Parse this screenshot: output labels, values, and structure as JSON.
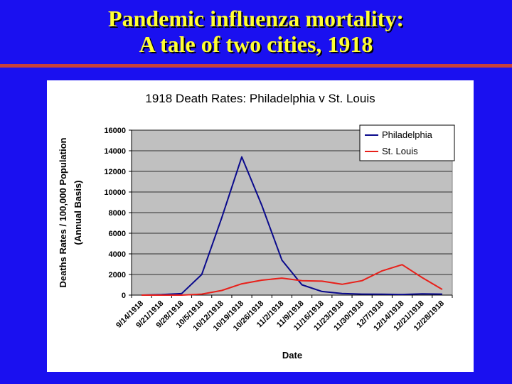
{
  "slide": {
    "title_line1": "Pandemic influenza mortality:",
    "title_line2": "A tale of two cities, 1918"
  },
  "colors": {
    "background": "#1a10f0",
    "title": "#ffff33",
    "rule": "#c8413a",
    "plot_area": "#c0c0c0",
    "philadelphia": "#0a0a8c",
    "st_louis": "#e8201a"
  },
  "chart_data": {
    "type": "line",
    "title": "1918 Death Rates: Philadelphia v St. Louis",
    "xlabel": "Date",
    "ylabel_line1": "Deaths Rates / 100,000 Population",
    "ylabel_line2": "(Annual Basis)",
    "ylim": [
      0,
      16000
    ],
    "yticks": [
      0,
      2000,
      4000,
      6000,
      8000,
      10000,
      12000,
      14000,
      16000
    ],
    "ytick_labels": [
      "0",
      "2000",
      "4000",
      "6000",
      "8000",
      "10000",
      "12000",
      "14000",
      "16000"
    ],
    "grid": true,
    "legend_position": "top-right",
    "categories": [
      "9/14/1918",
      "9/21/1918",
      "9/28/1918",
      "10/5/1918",
      "10/12/1918",
      "10/19/1918",
      "10/26/1918",
      "11/2/1918",
      "11/9/1918",
      "11/16/1918",
      "11/23/1918",
      "11/30/1918",
      "12/7/1918",
      "12/14/1918",
      "12/21/1918",
      "12/28/1918"
    ],
    "series": [
      {
        "name": "Philadelphia",
        "color": "#0a0a8c",
        "values": [
          0,
          50,
          150,
          2000,
          7500,
          13400,
          8700,
          3400,
          1000,
          350,
          150,
          100,
          80,
          60,
          120,
          100
        ]
      },
      {
        "name": "St. Louis",
        "color": "#e8201a",
        "values": [
          0,
          0,
          0,
          100,
          450,
          1100,
          1450,
          1650,
          1400,
          1350,
          1050,
          1400,
          2350,
          2950,
          1700,
          550
        ]
      }
    ]
  }
}
